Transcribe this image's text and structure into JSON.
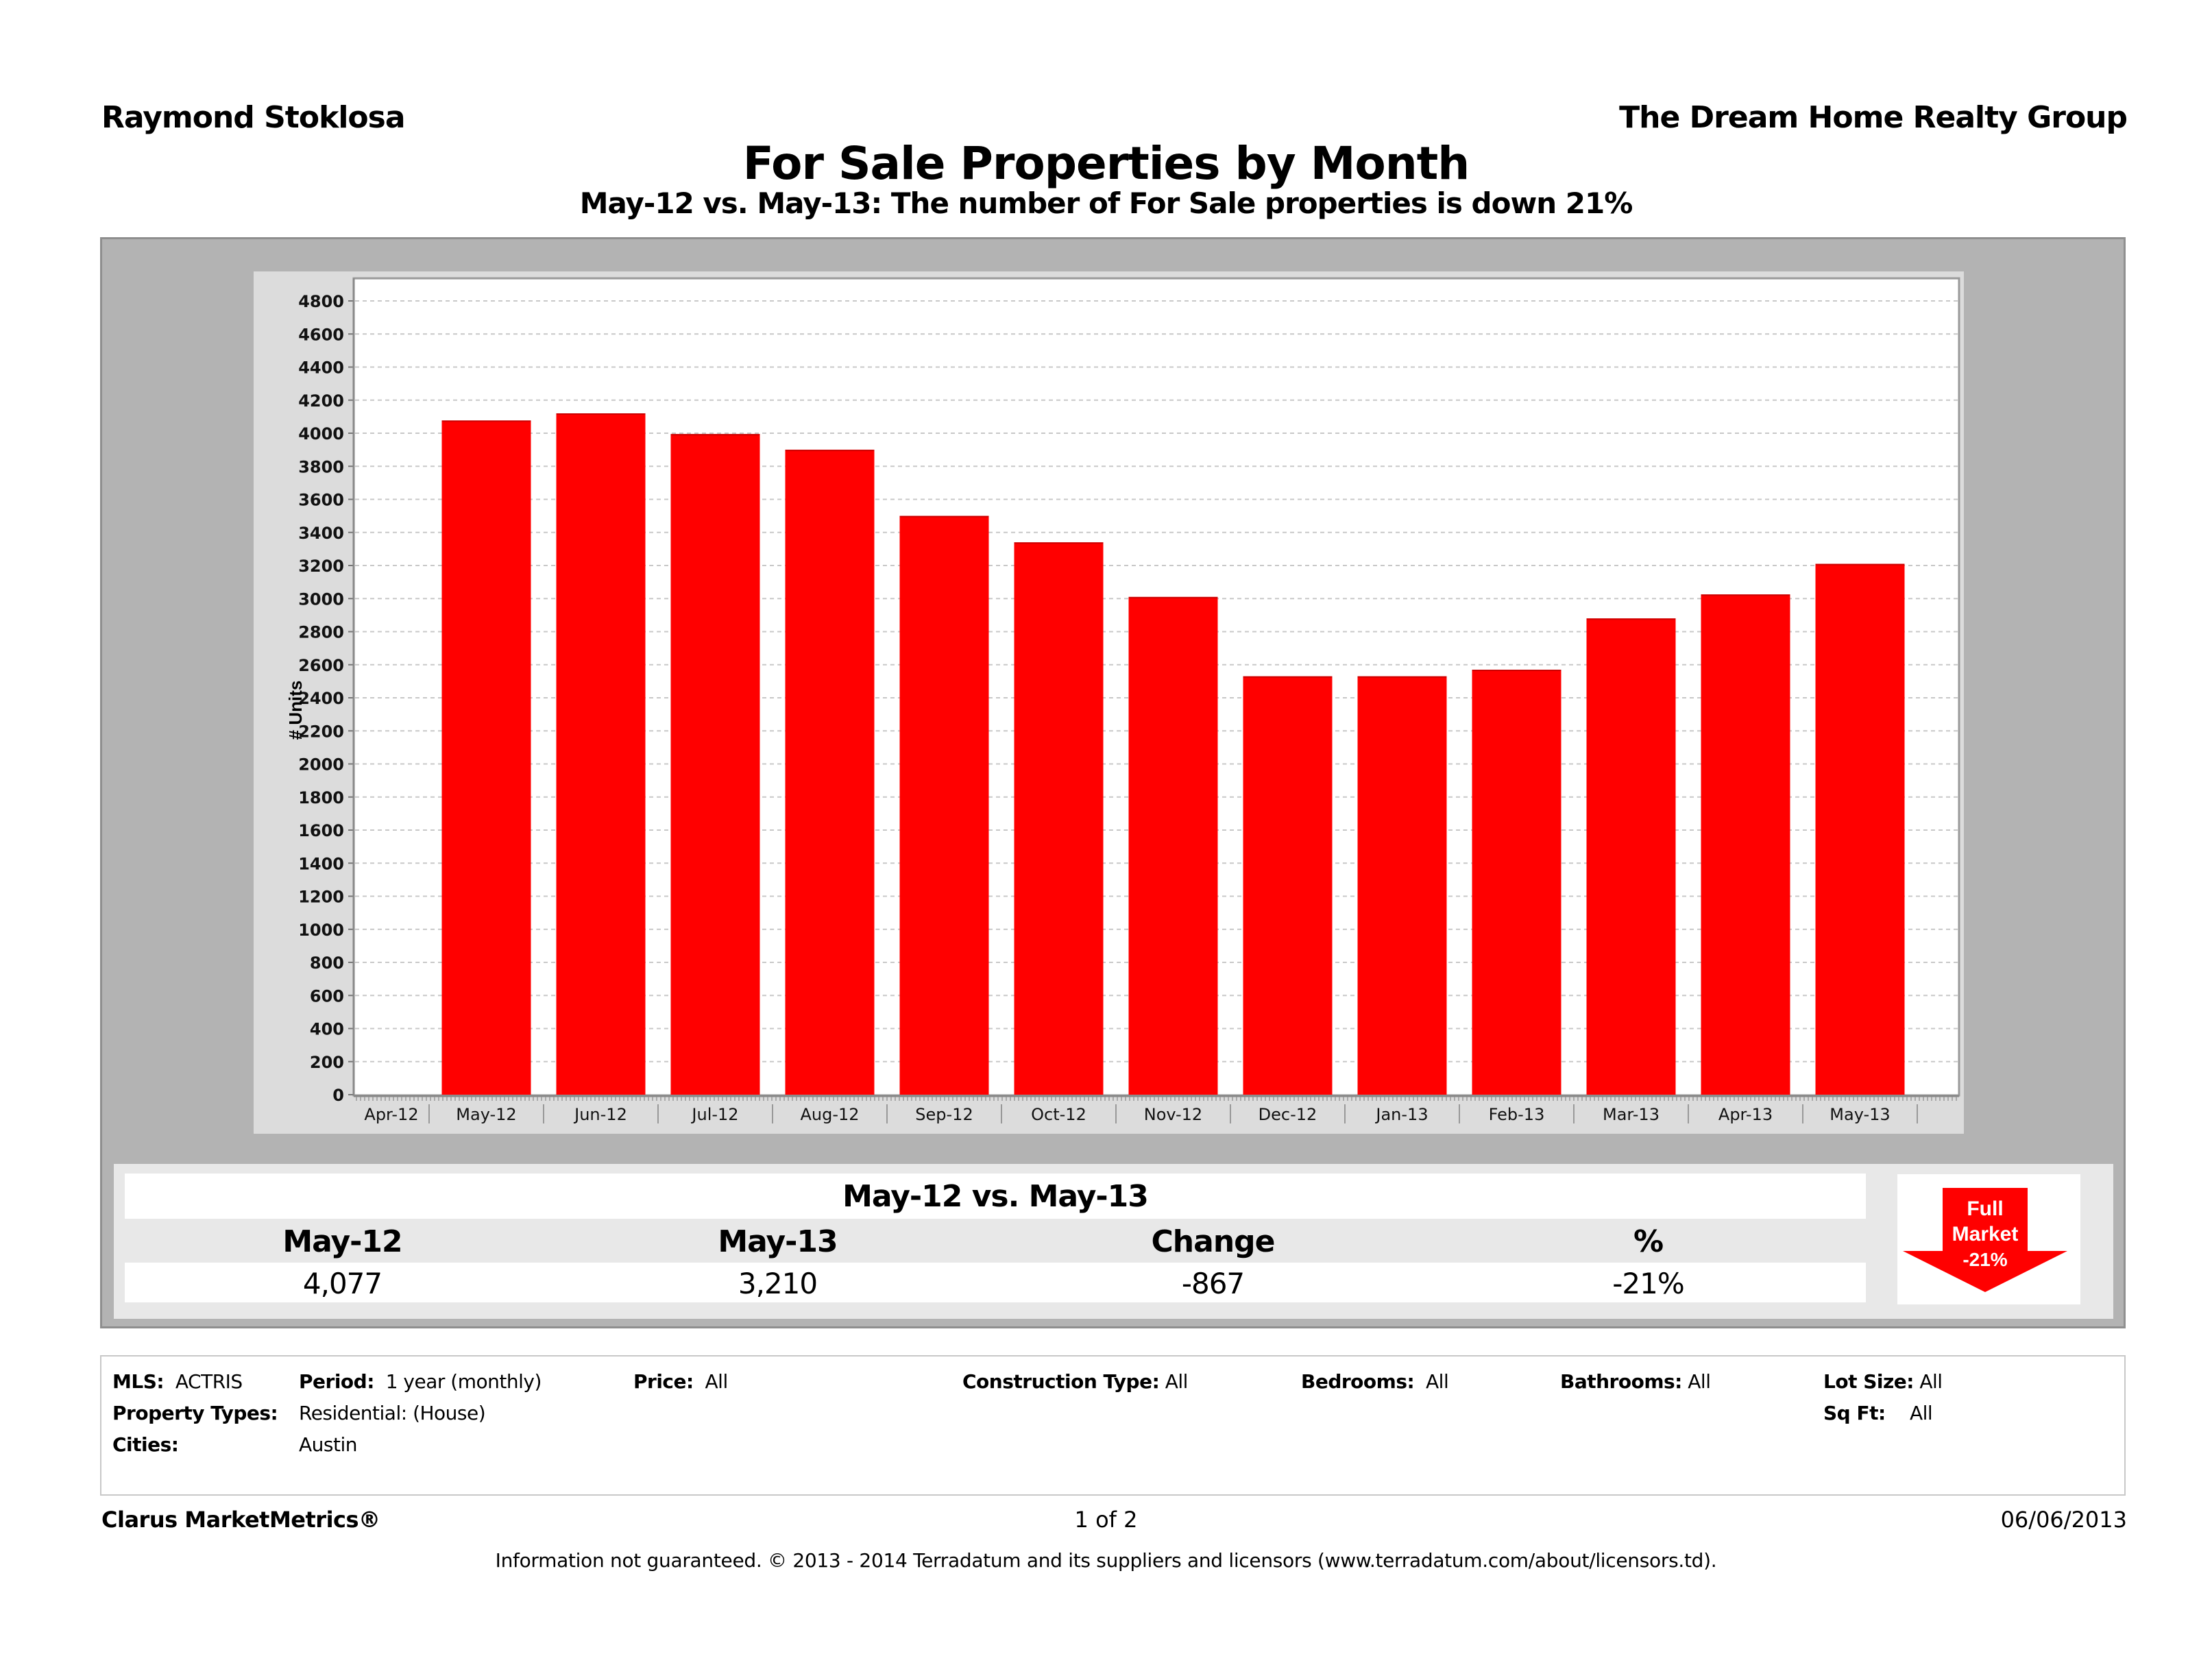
{
  "header": {
    "agent": "Raymond Stoklosa",
    "company": "The Dream Home Realty Group",
    "title": "For Sale Properties by Month",
    "subtitle": "May-12 vs. May-13: The number of For Sale properties is down 21%"
  },
  "chart_data": {
    "type": "bar",
    "title": "For Sale Properties by Month",
    "subtitle": "May-12 vs. May-13: The number of For Sale properties is down 21%",
    "xlabel": "",
    "ylabel": "# Units",
    "ylim": [
      0,
      4800
    ],
    "ytick_step": 200,
    "yticks": [
      0,
      200,
      400,
      600,
      800,
      1000,
      1200,
      1400,
      1600,
      1800,
      2000,
      2200,
      2400,
      2600,
      2800,
      3000,
      3200,
      3400,
      3600,
      3800,
      4000,
      4200,
      4400,
      4600,
      4800
    ],
    "grid": true,
    "legend": "none",
    "categories": [
      "Apr-12",
      "May-12",
      "Jun-12",
      "Jul-12",
      "Aug-12",
      "Sep-12",
      "Oct-12",
      "Nov-12",
      "Dec-12",
      "Jan-13",
      "Feb-13",
      "Mar-13",
      "Apr-13",
      "May-13"
    ],
    "series": [
      {
        "name": "# Units",
        "color": "#ff0000",
        "values": [
          null,
          4077,
          4120,
          3995,
          3900,
          3500,
          3340,
          3010,
          2530,
          2530,
          2570,
          2880,
          3025,
          3210
        ]
      }
    ]
  },
  "summary": {
    "title": "May-12 vs. May-13",
    "headers": [
      "May-12",
      "May-13",
      "Change",
      "%"
    ],
    "values": [
      "4,077",
      "3,210",
      "-867",
      "-21%"
    ],
    "badge": {
      "line1": "Full",
      "line2": "Market",
      "line3": "-21%",
      "color": "#ff0000",
      "direction": "down"
    }
  },
  "filters": {
    "mls": {
      "label": "MLS:",
      "value": "ACTRIS"
    },
    "period": {
      "label": "Period:",
      "value": "1 year (monthly)"
    },
    "price": {
      "label": "Price:",
      "value": "All"
    },
    "construction": {
      "label": "Construction Type:",
      "value": "All"
    },
    "bedrooms": {
      "label": "Bedrooms:",
      "value": "All"
    },
    "bathrooms": {
      "label": "Bathrooms:",
      "value": "All"
    },
    "lot_size": {
      "label": "Lot Size:",
      "value": "All"
    },
    "property_types": {
      "label": "Property Types:",
      "value": "Residential: (House)"
    },
    "sq_ft": {
      "label": "Sq Ft:",
      "value": "All"
    },
    "cities": {
      "label": "Cities:",
      "value": "Austin"
    }
  },
  "footer": {
    "brand": "Clarus MarketMetrics®",
    "page": "1 of 2",
    "date": "06/06/2013",
    "disclaimer": "Information not guaranteed.  © 2013 - 2014 Terradatum and its suppliers and licensors (www.terradatum.com/about/licensors.td)."
  }
}
